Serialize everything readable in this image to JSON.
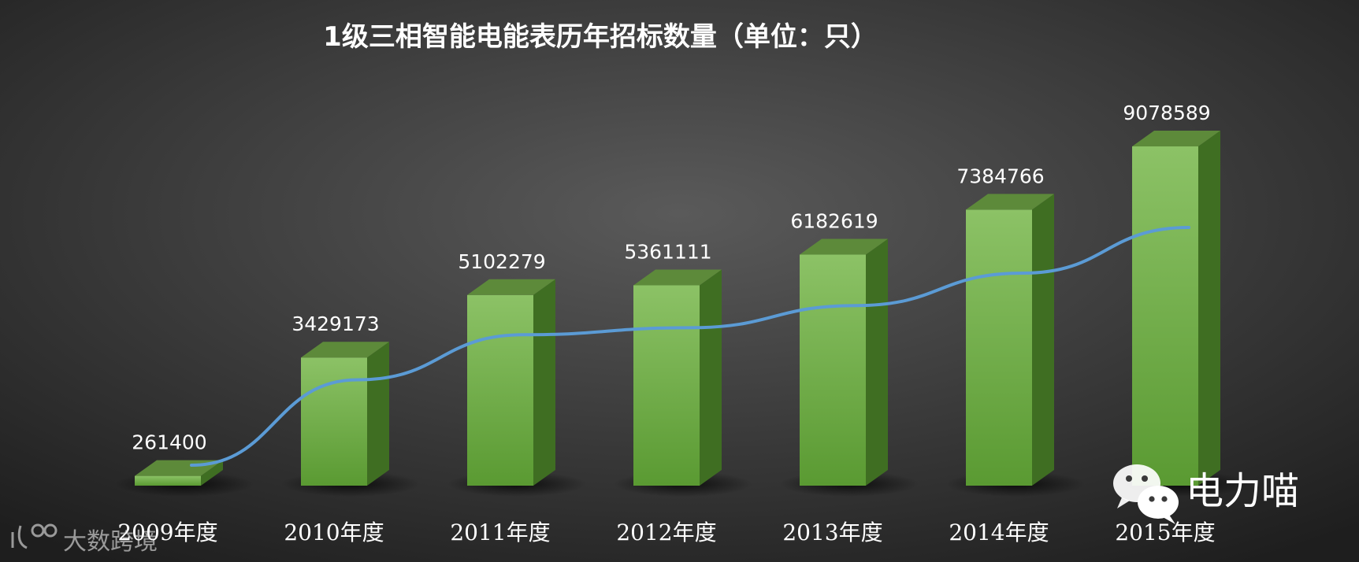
{
  "chart_data": {
    "type": "bar",
    "title": "1级三相智能电能表历年招标数量（单位：只）",
    "categories": [
      "2009年度",
      "2010年度",
      "2011年度",
      "2012年度",
      "2013年度",
      "2014年度",
      "2015年度"
    ],
    "series": [
      {
        "values": [
          261400,
          3429173,
          5102279,
          5361111,
          6182619,
          7384766,
          9078589
        ],
        "labels": [
          "261400",
          "3429173",
          "5102279",
          "5361111",
          "6182619",
          "7384766",
          "9078589"
        ]
      }
    ],
    "trend_line": {
      "values": [
        261400,
        3429173,
        5102279,
        5361111,
        6182619,
        7384766,
        9078589
      ]
    },
    "ylim": [
      0,
      9078589
    ],
    "grid": false,
    "legend": "none",
    "colors": {
      "background_center": "#5a5a5a",
      "background_edge": "#1e1e1e",
      "bar_front_top": "#8cc266",
      "bar_front_bottom": "#5a9a32",
      "bar_side": "#3f6e22",
      "bar_top": "#5d8a3a",
      "trend_line": "#5b9bd5",
      "text": "#ffffff"
    }
  },
  "watermarks": {
    "left_logo": "大数跨境",
    "right_brand": "电力喵",
    "right_icon": "wechat-icon"
  }
}
